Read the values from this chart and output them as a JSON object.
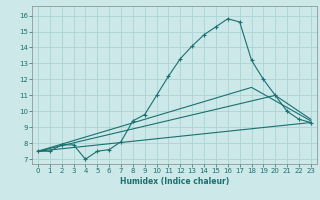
{
  "xlabel": "Humidex (Indice chaleur)",
  "xlim": [
    -0.5,
    23.5
  ],
  "ylim": [
    6.7,
    16.6
  ],
  "xticks": [
    0,
    1,
    2,
    3,
    4,
    5,
    6,
    7,
    8,
    9,
    10,
    11,
    12,
    13,
    14,
    15,
    16,
    17,
    18,
    19,
    20,
    21,
    22,
    23
  ],
  "yticks": [
    7,
    8,
    9,
    10,
    11,
    12,
    13,
    14,
    15,
    16
  ],
  "bg_color": "#cce8e8",
  "grid_color": "#aad4d4",
  "line_color": "#1a7070",
  "line1_x": [
    0,
    1,
    2,
    3,
    4,
    5,
    6,
    7,
    8,
    9,
    10,
    11,
    12,
    13,
    14,
    15,
    16,
    17,
    18,
    19,
    20,
    21,
    22,
    23
  ],
  "line1_y": [
    7.5,
    7.5,
    7.9,
    7.9,
    7.0,
    7.5,
    7.6,
    8.1,
    9.4,
    9.8,
    11.0,
    12.2,
    13.3,
    14.1,
    14.8,
    15.3,
    15.8,
    15.6,
    13.2,
    12.0,
    11.0,
    10.0,
    9.5,
    9.3
  ],
  "line2_x": [
    0,
    23
  ],
  "line2_y": [
    7.5,
    9.3
  ],
  "line3_x": [
    0,
    20,
    23
  ],
  "line3_y": [
    7.5,
    11.0,
    9.5
  ],
  "line4_x": [
    0,
    18,
    23
  ],
  "line4_y": [
    7.5,
    11.5,
    9.4
  ]
}
